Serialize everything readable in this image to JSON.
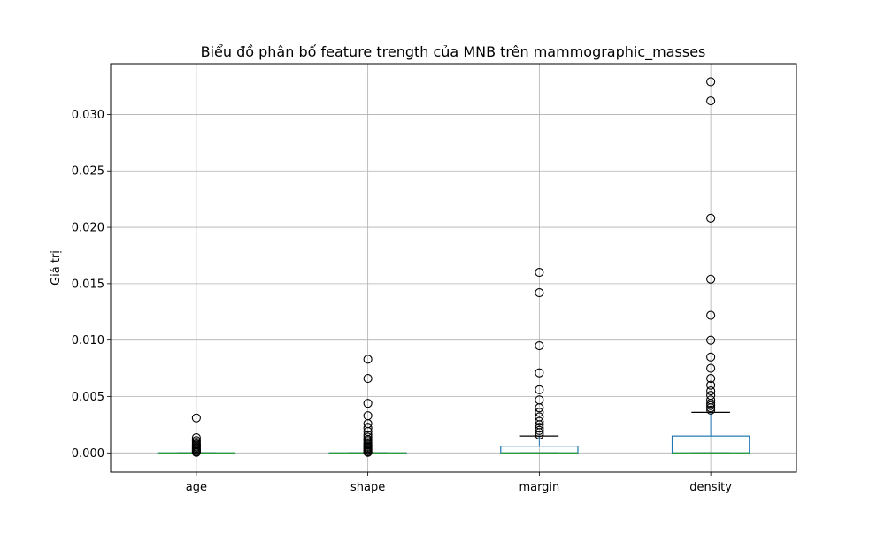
{
  "chart_data": {
    "type": "box",
    "title": "Biểu đồ phân bố feature trength của MNB trên mammographic_masses",
    "xlabel": "",
    "ylabel": "Giá trị",
    "ylim": [
      -0.0017,
      0.0345
    ],
    "yticks": [
      0.0,
      0.005,
      0.01,
      0.015,
      0.02,
      0.025,
      0.03
    ],
    "ytick_labels": [
      "0.000",
      "0.005",
      "0.010",
      "0.015",
      "0.020",
      "0.025",
      "0.030"
    ],
    "grid": true,
    "categories": [
      "age",
      "shape",
      "margin",
      "density"
    ],
    "boxes": [
      {
        "label": "age",
        "whisker_low": 0.0,
        "q1": 0.0,
        "median": 0.0,
        "q3": 0.0,
        "whisker_high": 0.0,
        "outliers": [
          0.0031,
          0.00135,
          0.0011,
          0.00095,
          0.0008,
          0.0007,
          0.0006,
          0.0005,
          0.0004,
          0.0003,
          0.0002,
          0.0001,
          5e-05
        ]
      },
      {
        "label": "shape",
        "whisker_low": 0.0,
        "q1": 0.0,
        "median": 0.0,
        "q3": 0.0,
        "whisker_high": 0.0,
        "outliers": [
          0.0083,
          0.0066,
          0.0044,
          0.0033,
          0.0026,
          0.0022,
          0.0019,
          0.0016,
          0.0014,
          0.0012,
          0.0011,
          0.0009,
          0.0008,
          0.0007,
          0.0006,
          0.0005,
          0.0004,
          0.0003,
          0.0002,
          0.0001,
          5e-05
        ]
      },
      {
        "label": "margin",
        "whisker_low": 0.0,
        "q1": 0.0,
        "median": 0.0,
        "q3": 0.0006,
        "whisker_high": 0.0015,
        "outliers": [
          0.016,
          0.0142,
          0.0095,
          0.0071,
          0.0056,
          0.0047,
          0.004,
          0.0036,
          0.0032,
          0.0028,
          0.0025,
          0.0022,
          0.002,
          0.0018,
          0.0016
        ]
      },
      {
        "label": "density",
        "whisker_low": 0.0,
        "q1": 0.0,
        "median": 0.0,
        "q3": 0.0015,
        "whisker_high": 0.0036,
        "outliers": [
          0.0329,
          0.0312,
          0.0208,
          0.0154,
          0.0122,
          0.01,
          0.0085,
          0.0075,
          0.0066,
          0.006,
          0.0055,
          0.0051,
          0.0047,
          0.0044,
          0.0042,
          0.004,
          0.0038
        ]
      }
    ]
  },
  "colors": {
    "box": "#1f77b4",
    "median": "#2ca02c",
    "whisker_cap": "#000000",
    "outlier_edge": "#000000",
    "grid": "#b0b0b0",
    "frame": "#000000"
  }
}
